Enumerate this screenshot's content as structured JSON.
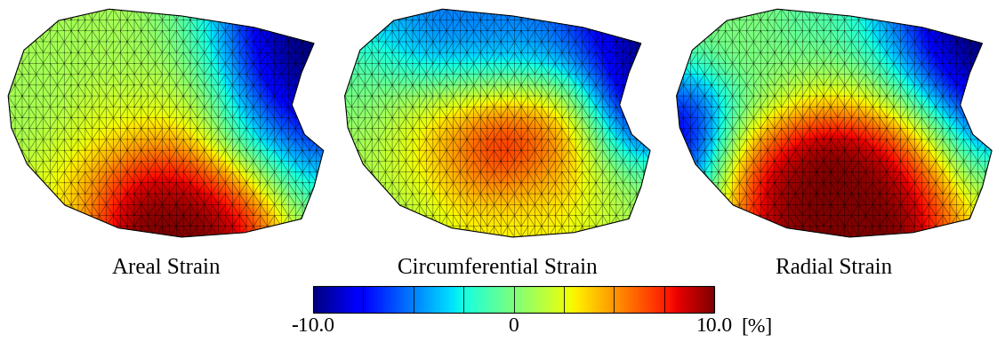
{
  "chart_data": [
    {
      "type": "heatmap",
      "title": "Areal Strain",
      "cells": [
        [
          1,
          1,
          1,
          1,
          0,
          -2,
          -6,
          -9,
          -10
        ],
        [
          1,
          1,
          1,
          1,
          1,
          -1,
          -5,
          -9,
          -10
        ],
        [
          1,
          1,
          2,
          2,
          2,
          1,
          -3,
          -7,
          -9
        ],
        [
          1,
          2,
          3,
          4,
          5,
          3,
          -1,
          -4,
          -6
        ],
        [
          2,
          3,
          5,
          8,
          9,
          8,
          5,
          0,
          -3
        ],
        [
          2,
          3,
          6,
          10,
          10,
          10,
          9,
          5,
          0
        ]
      ]
    },
    {
      "type": "heatmap",
      "title": "Circumferential Strain",
      "cells": [
        [
          -3,
          -4,
          -5,
          -5,
          -5,
          -5,
          -6,
          -8,
          -9
        ],
        [
          -1,
          -2,
          -3,
          -3,
          -3,
          -3,
          -4,
          -7,
          -10
        ],
        [
          0,
          1,
          2,
          3,
          4,
          4,
          2,
          -4,
          -9
        ],
        [
          1,
          2,
          4,
          6,
          8,
          7,
          5,
          0,
          -5
        ],
        [
          1,
          2,
          3,
          5,
          6,
          5,
          4,
          2,
          0
        ],
        [
          1,
          1,
          2,
          3,
          3,
          3,
          3,
          2,
          1
        ]
      ]
    },
    {
      "type": "heatmap",
      "title": "Radial Strain",
      "cells": [
        [
          0,
          0,
          0,
          -1,
          -1,
          -3,
          -6,
          -9,
          -10
        ],
        [
          -2,
          0,
          0,
          0,
          0,
          -1,
          -4,
          -8,
          -10
        ],
        [
          -7,
          -2,
          1,
          3,
          4,
          3,
          0,
          -4,
          -8
        ],
        [
          -8,
          0,
          6,
          9,
          10,
          9,
          6,
          1,
          -4
        ],
        [
          -5,
          3,
          9,
          10,
          10,
          10,
          9,
          5,
          0
        ],
        [
          -2,
          4,
          9,
          10,
          10,
          10,
          10,
          7,
          3
        ]
      ]
    }
  ],
  "colorbar": {
    "range": [
      -10,
      10
    ],
    "ticks": [
      {
        "value": -10,
        "label": "-10.0"
      },
      0,
      {
        "value": 10,
        "label": "10.0"
      }
    ],
    "label": "[%]"
  }
}
